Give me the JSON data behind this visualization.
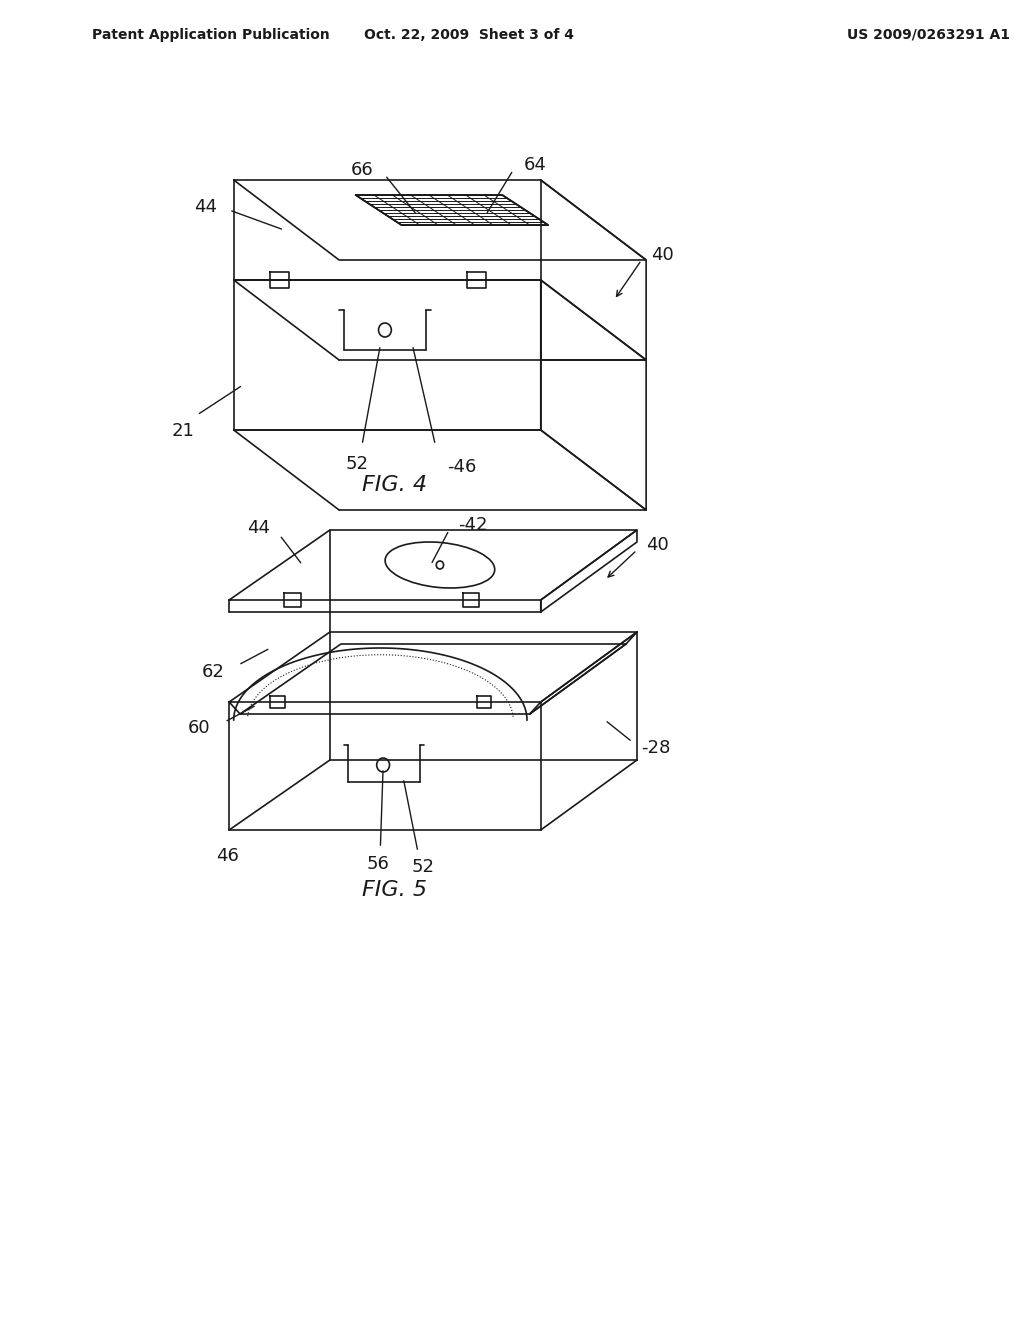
{
  "bg_color": "#ffffff",
  "line_color": "#1a1a1a",
  "light_gray": "#d0d0d0",
  "medium_gray": "#888888",
  "header_left": "Patent Application Publication",
  "header_mid": "Oct. 22, 2009  Sheet 3 of 4",
  "header_right": "US 2009/0263291 A1",
  "fig4_caption": "FIG. 4",
  "fig5_caption": "FIG. 5"
}
